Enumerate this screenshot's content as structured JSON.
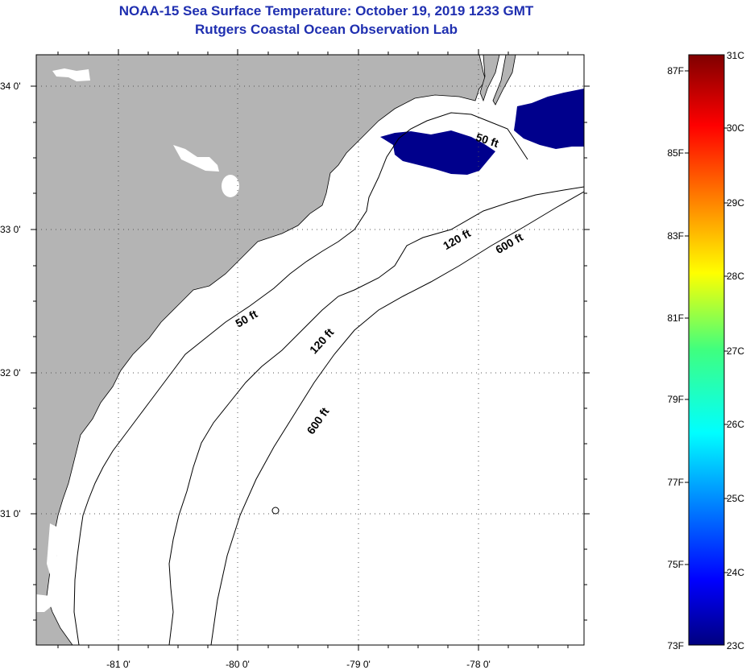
{
  "header": {
    "title": "NOAA-15 Sea Surface Temperature:  October 19, 2019 1233 GMT",
    "subtitle": "Rutgers Coastal Ocean Observation Lab"
  },
  "map": {
    "lat_labels": [
      "34 0'",
      "33 0'",
      "32 0'",
      "31 0'"
    ],
    "lon_labels": [
      "-81 0'",
      "-80 0'",
      "-79 0'",
      "-78 0'"
    ],
    "contour_labels": {
      "c50_north": "50 ft",
      "c50_mid": "50 ft",
      "c120_north": "120 ft",
      "c120_mid": "120 ft",
      "c600_north": "600 ft",
      "c600_mid": "600 ft"
    },
    "colors": {
      "land": "#b4b4b4",
      "sst_cold": "#00008c",
      "frame": "#000000"
    }
  },
  "colorbar": {
    "fahrenheit_labels": [
      "87F",
      "85F",
      "83F",
      "81F",
      "79F",
      "77F",
      "75F",
      "73F"
    ],
    "celsius_labels": [
      "31C",
      "30C",
      "29C",
      "28C",
      "27C",
      "26C",
      "25C",
      "24C",
      "23C"
    ],
    "range_c": [
      23,
      31
    ],
    "range_f": [
      73,
      87
    ]
  }
}
